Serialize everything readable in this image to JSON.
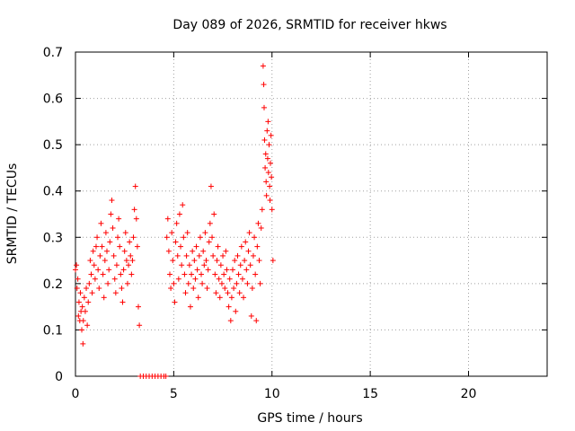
{
  "chart_data": {
    "type": "scatter",
    "title": "Day 089 of 2026, SRMTID for receiver hkws",
    "xlabel": "GPS time / hours",
    "ylabel": "SRMTID / TECUs",
    "xlim": [
      0,
      24
    ],
    "ylim": [
      0,
      0.7
    ],
    "x_ticks": [
      0,
      5,
      10,
      15,
      20
    ],
    "y_ticks": [
      0,
      0.1,
      0.2,
      0.3,
      0.4,
      0.5,
      0.6,
      0.7
    ],
    "x_tick_labels": [
      "0",
      "5",
      "10",
      "15",
      "20"
    ],
    "y_tick_labels": [
      "0",
      "0.1",
      "0.2",
      "0.3",
      "0.4",
      "0.5",
      "0.6",
      "0.7"
    ],
    "grid": true,
    "marker": "+",
    "series_color": "#ff0000",
    "series": [
      {
        "name": "SRMTID",
        "points": [
          [
            0.0,
            0.23
          ],
          [
            0.05,
            0.24
          ],
          [
            0.08,
            0.19
          ],
          [
            0.12,
            0.21
          ],
          [
            0.15,
            0.13
          ],
          [
            0.18,
            0.16
          ],
          [
            0.22,
            0.12
          ],
          [
            0.25,
            0.18
          ],
          [
            0.28,
            0.14
          ],
          [
            0.32,
            0.1
          ],
          [
            0.35,
            0.15
          ],
          [
            0.38,
            0.07
          ],
          [
            0.4,
            0.12
          ],
          [
            0.45,
            0.17
          ],
          [
            0.5,
            0.14
          ],
          [
            0.55,
            0.19
          ],
          [
            0.6,
            0.11
          ],
          [
            0.65,
            0.16
          ],
          [
            0.7,
            0.2
          ],
          [
            0.75,
            0.25
          ],
          [
            0.8,
            0.22
          ],
          [
            0.85,
            0.18
          ],
          [
            0.9,
            0.27
          ],
          [
            0.95,
            0.24
          ],
          [
            1.0,
            0.21
          ],
          [
            1.05,
            0.28
          ],
          [
            1.1,
            0.3
          ],
          [
            1.15,
            0.23
          ],
          [
            1.2,
            0.19
          ],
          [
            1.25,
            0.26
          ],
          [
            1.3,
            0.33
          ],
          [
            1.35,
            0.28
          ],
          [
            1.4,
            0.22
          ],
          [
            1.45,
            0.17
          ],
          [
            1.5,
            0.25
          ],
          [
            1.55,
            0.31
          ],
          [
            1.6,
            0.27
          ],
          [
            1.65,
            0.2
          ],
          [
            1.7,
            0.23
          ],
          [
            1.75,
            0.29
          ],
          [
            1.8,
            0.35
          ],
          [
            1.85,
            0.38
          ],
          [
            1.9,
            0.32
          ],
          [
            1.95,
            0.26
          ],
          [
            2.0,
            0.21
          ],
          [
            2.05,
            0.18
          ],
          [
            2.1,
            0.24
          ],
          [
            2.15,
            0.3
          ],
          [
            2.2,
            0.34
          ],
          [
            2.25,
            0.28
          ],
          [
            2.3,
            0.22
          ],
          [
            2.35,
            0.19
          ],
          [
            2.4,
            0.16
          ],
          [
            2.45,
            0.23
          ],
          [
            2.5,
            0.27
          ],
          [
            2.55,
            0.31
          ],
          [
            2.6,
            0.25
          ],
          [
            2.65,
            0.2
          ],
          [
            2.7,
            0.24
          ],
          [
            2.75,
            0.29
          ],
          [
            2.8,
            0.26
          ],
          [
            2.85,
            0.22
          ],
          [
            2.9,
            0.25
          ],
          [
            2.95,
            0.3
          ],
          [
            3.0,
            0.36
          ],
          [
            3.05,
            0.41
          ],
          [
            3.1,
            0.34
          ],
          [
            3.15,
            0.28
          ],
          [
            3.2,
            0.15
          ],
          [
            3.25,
            0.11
          ],
          [
            3.3,
            0.0
          ],
          [
            3.45,
            0.0
          ],
          [
            3.6,
            0.0
          ],
          [
            3.75,
            0.0
          ],
          [
            3.9,
            0.0
          ],
          [
            4.05,
            0.0
          ],
          [
            4.2,
            0.0
          ],
          [
            4.35,
            0.0
          ],
          [
            4.5,
            0.0
          ],
          [
            4.6,
            0.0
          ],
          [
            4.65,
            0.3
          ],
          [
            4.7,
            0.34
          ],
          [
            4.75,
            0.27
          ],
          [
            4.8,
            0.22
          ],
          [
            4.85,
            0.19
          ],
          [
            4.9,
            0.31
          ],
          [
            4.95,
            0.25
          ],
          [
            5.0,
            0.2
          ],
          [
            5.05,
            0.16
          ],
          [
            5.1,
            0.29
          ],
          [
            5.15,
            0.33
          ],
          [
            5.2,
            0.26
          ],
          [
            5.25,
            0.21
          ],
          [
            5.3,
            0.35
          ],
          [
            5.35,
            0.28
          ],
          [
            5.4,
            0.24
          ],
          [
            5.45,
            0.37
          ],
          [
            5.5,
            0.3
          ],
          [
            5.55,
            0.22
          ],
          [
            5.6,
            0.18
          ],
          [
            5.65,
            0.26
          ],
          [
            5.7,
            0.31
          ],
          [
            5.75,
            0.2
          ],
          [
            5.8,
            0.24
          ],
          [
            5.85,
            0.15
          ],
          [
            5.9,
            0.22
          ],
          [
            5.95,
            0.27
          ],
          [
            6.0,
            0.19
          ],
          [
            6.05,
            0.25
          ],
          [
            6.1,
            0.21
          ],
          [
            6.15,
            0.28
          ],
          [
            6.2,
            0.23
          ],
          [
            6.25,
            0.17
          ],
          [
            6.3,
            0.26
          ],
          [
            6.35,
            0.3
          ],
          [
            6.4,
            0.22
          ],
          [
            6.45,
            0.2
          ],
          [
            6.5,
            0.27
          ],
          [
            6.55,
            0.24
          ],
          [
            6.6,
            0.31
          ],
          [
            6.65,
            0.25
          ],
          [
            6.7,
            0.19
          ],
          [
            6.75,
            0.23
          ],
          [
            6.8,
            0.29
          ],
          [
            6.85,
            0.33
          ],
          [
            6.9,
            0.41
          ],
          [
            6.95,
            0.3
          ],
          [
            7.0,
            0.26
          ],
          [
            7.05,
            0.35
          ],
          [
            7.1,
            0.22
          ],
          [
            7.15,
            0.18
          ],
          [
            7.2,
            0.25
          ],
          [
            7.25,
            0.28
          ],
          [
            7.3,
            0.21
          ],
          [
            7.35,
            0.17
          ],
          [
            7.4,
            0.24
          ],
          [
            7.45,
            0.2
          ],
          [
            7.5,
            0.26
          ],
          [
            7.55,
            0.22
          ],
          [
            7.6,
            0.19
          ],
          [
            7.65,
            0.27
          ],
          [
            7.7,
            0.23
          ],
          [
            7.75,
            0.18
          ],
          [
            7.8,
            0.15
          ],
          [
            7.85,
            0.21
          ],
          [
            7.9,
            0.12
          ],
          [
            7.95,
            0.17
          ],
          [
            8.0,
            0.23
          ],
          [
            8.05,
            0.19
          ],
          [
            8.1,
            0.25
          ],
          [
            8.15,
            0.14
          ],
          [
            8.2,
            0.2
          ],
          [
            8.25,
            0.26
          ],
          [
            8.3,
            0.22
          ],
          [
            8.35,
            0.18
          ],
          [
            8.4,
            0.24
          ],
          [
            8.45,
            0.28
          ],
          [
            8.5,
            0.21
          ],
          [
            8.55,
            0.17
          ],
          [
            8.6,
            0.25
          ],
          [
            8.65,
            0.29
          ],
          [
            8.7,
            0.23
          ],
          [
            8.75,
            0.2
          ],
          [
            8.8,
            0.27
          ],
          [
            8.85,
            0.31
          ],
          [
            8.9,
            0.24
          ],
          [
            8.95,
            0.13
          ],
          [
            9.0,
            0.19
          ],
          [
            9.05,
            0.26
          ],
          [
            9.1,
            0.3
          ],
          [
            9.15,
            0.22
          ],
          [
            9.2,
            0.12
          ],
          [
            9.25,
            0.28
          ],
          [
            9.3,
            0.33
          ],
          [
            9.35,
            0.25
          ],
          [
            9.4,
            0.2
          ],
          [
            9.45,
            0.32
          ],
          [
            9.5,
            0.36
          ],
          [
            9.55,
            0.67
          ],
          [
            9.58,
            0.63
          ],
          [
            9.6,
            0.58
          ],
          [
            9.62,
            0.51
          ],
          [
            9.65,
            0.45
          ],
          [
            9.68,
            0.48
          ],
          [
            9.7,
            0.42
          ],
          [
            9.72,
            0.39
          ],
          [
            9.75,
            0.53
          ],
          [
            9.78,
            0.47
          ],
          [
            9.8,
            0.55
          ],
          [
            9.82,
            0.44
          ],
          [
            9.85,
            0.5
          ],
          [
            9.88,
            0.41
          ],
          [
            9.9,
            0.38
          ],
          [
            9.92,
            0.46
          ],
          [
            9.95,
            0.52
          ],
          [
            9.97,
            0.43
          ],
          [
            10.0,
            0.36
          ],
          [
            10.05,
            0.25
          ]
        ]
      }
    ]
  }
}
